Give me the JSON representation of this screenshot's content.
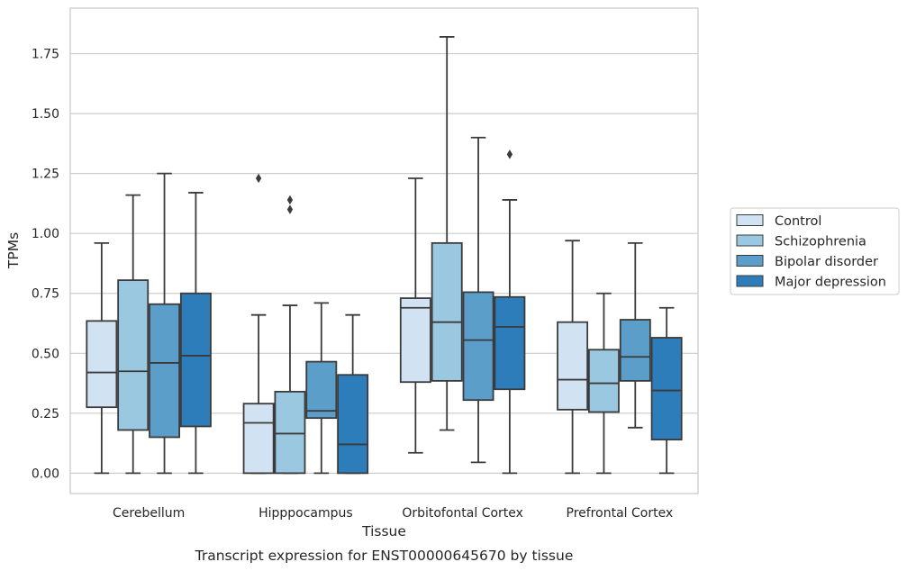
{
  "chart_data": {
    "type": "box",
    "xlabel": "Tissue",
    "ylabel": "TPMs",
    "caption": "Transcript expression for ENST00000645670 by tissue",
    "ylim": [
      -0.085,
      1.94
    ],
    "yticks": [
      "0.00",
      "0.25",
      "0.50",
      "0.75",
      "1.00",
      "1.25",
      "1.50",
      "1.75"
    ],
    "grid": "horizontal",
    "legend_position": "right",
    "categories": [
      "Cerebellum",
      "Hipppocampus",
      "Orbitofontal Cortex",
      "Prefrontal Cortex"
    ],
    "series": [
      {
        "name": "Control",
        "color": "#d1e2f2",
        "boxes": [
          {
            "whislo": 0.0,
            "q1": 0.275,
            "med": 0.42,
            "q3": 0.635,
            "whishi": 0.96,
            "fliers": []
          },
          {
            "whislo": 0.0,
            "q1": 0.0,
            "med": 0.21,
            "q3": 0.29,
            "whishi": 0.66,
            "fliers": [
              1.23
            ]
          },
          {
            "whislo": 0.085,
            "q1": 0.38,
            "med": 0.69,
            "q3": 0.73,
            "whishi": 1.23,
            "fliers": []
          },
          {
            "whislo": 0.0,
            "q1": 0.265,
            "med": 0.39,
            "q3": 0.63,
            "whishi": 0.97,
            "fliers": []
          }
        ]
      },
      {
        "name": "Schizophrenia",
        "color": "#9ac8e0",
        "boxes": [
          {
            "whislo": 0.0,
            "q1": 0.18,
            "med": 0.425,
            "q3": 0.805,
            "whishi": 1.16,
            "fliers": []
          },
          {
            "whislo": 0.0,
            "q1": 0.0,
            "med": 0.165,
            "q3": 0.34,
            "whishi": 0.7,
            "fliers": [
              1.1,
              1.14
            ]
          },
          {
            "whislo": 0.18,
            "q1": 0.385,
            "med": 0.63,
            "q3": 0.96,
            "whishi": 1.82,
            "fliers": []
          },
          {
            "whislo": 0.0,
            "q1": 0.255,
            "med": 0.375,
            "q3": 0.515,
            "whishi": 0.75,
            "fliers": []
          }
        ]
      },
      {
        "name": "Bipolar disorder",
        "color": "#5b9ec9",
        "boxes": [
          {
            "whislo": 0.0,
            "q1": 0.15,
            "med": 0.46,
            "q3": 0.705,
            "whishi": 1.25,
            "fliers": []
          },
          {
            "whislo": 0.0,
            "q1": 0.23,
            "med": 0.26,
            "q3": 0.465,
            "whishi": 0.71,
            "fliers": []
          },
          {
            "whislo": 0.045,
            "q1": 0.305,
            "med": 0.555,
            "q3": 0.755,
            "whishi": 1.4,
            "fliers": []
          },
          {
            "whislo": 0.19,
            "q1": 0.385,
            "med": 0.485,
            "q3": 0.64,
            "whishi": 0.96,
            "fliers": []
          }
        ]
      },
      {
        "name": "Major depression",
        "color": "#2d7dbb",
        "boxes": [
          {
            "whislo": 0.0,
            "q1": 0.195,
            "med": 0.49,
            "q3": 0.75,
            "whishi": 1.17,
            "fliers": []
          },
          {
            "whislo": 0.0,
            "q1": 0.0,
            "med": 0.12,
            "q3": 0.41,
            "whishi": 0.66,
            "fliers": []
          },
          {
            "whislo": 0.0,
            "q1": 0.35,
            "med": 0.61,
            "q3": 0.735,
            "whishi": 1.14,
            "fliers": [
              1.33
            ]
          },
          {
            "whislo": 0.0,
            "q1": 0.14,
            "med": 0.345,
            "q3": 0.565,
            "whishi": 0.69,
            "fliers": []
          }
        ]
      }
    ],
    "colors": {
      "edge": "#3b3b3b",
      "grid": "#cccccc",
      "frame": "#cccccc",
      "text": "#262626"
    }
  }
}
